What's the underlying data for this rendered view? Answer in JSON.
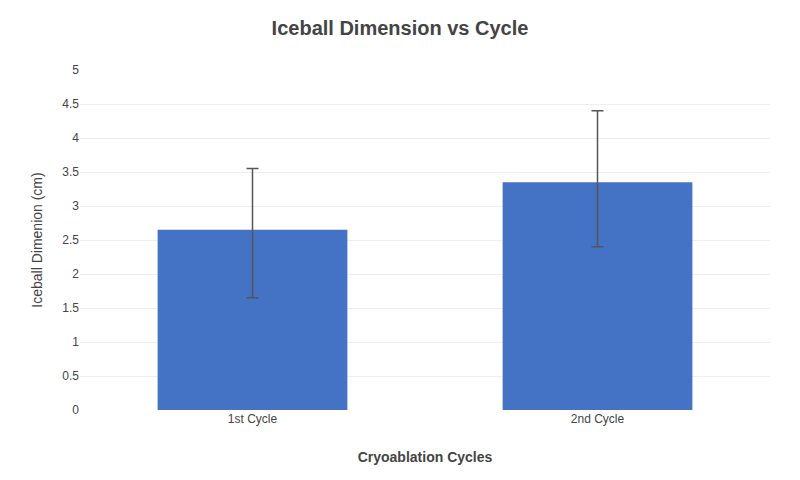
{
  "chart_data": {
    "type": "bar",
    "title": "Iceball Dimension vs Cycle",
    "xlabel": "Cryoablation Cycles",
    "ylabel": "Iceball Dimenion (cm)",
    "categories": [
      "1st Cycle",
      "2nd Cycle"
    ],
    "values": [
      2.65,
      3.35
    ],
    "color": "#4472C4",
    "errors": {
      "upper": [
        0.9,
        1.05
      ],
      "lower": [
        1.0,
        0.95
      ],
      "color": "#555555"
    },
    "ylim": [
      0,
      5
    ],
    "yticks": [
      0,
      0.5,
      1.0,
      1.5,
      2.0,
      2.5,
      3.0,
      3.5,
      4.0,
      4.5,
      5.0
    ],
    "grid": true
  }
}
